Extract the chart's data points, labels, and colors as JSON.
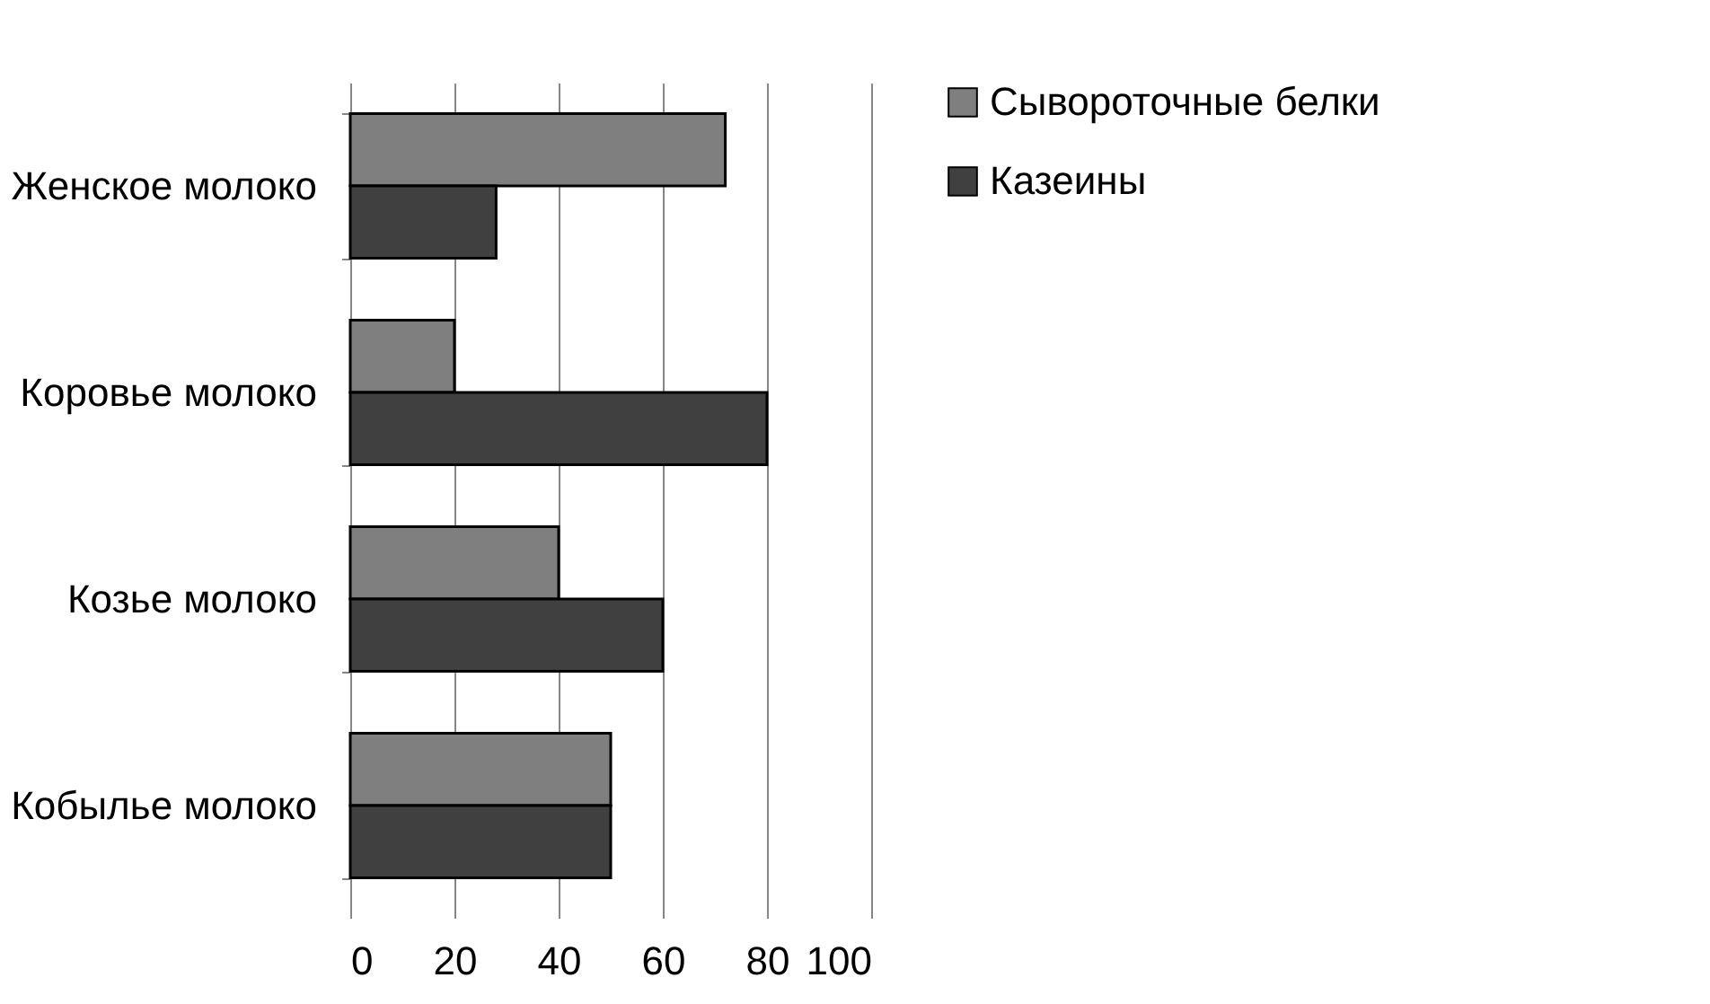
{
  "chart_data": {
    "type": "bar",
    "orientation": "horizontal",
    "categories": [
      "Женское молоко",
      "Коровье молоко",
      "Козье молоко",
      "Кобылье молоко"
    ],
    "series": [
      {
        "name": "Сывороточные белки",
        "color": "#7f7f7f",
        "values": [
          72,
          20,
          40,
          50
        ]
      },
      {
        "name": "Казеины",
        "color": "#404040",
        "values": [
          28,
          80,
          60,
          50
        ]
      }
    ],
    "xlim": [
      0,
      100
    ],
    "xticks": [
      0,
      20,
      40,
      60,
      80,
      100
    ],
    "grid": "x",
    "legend": "right"
  }
}
